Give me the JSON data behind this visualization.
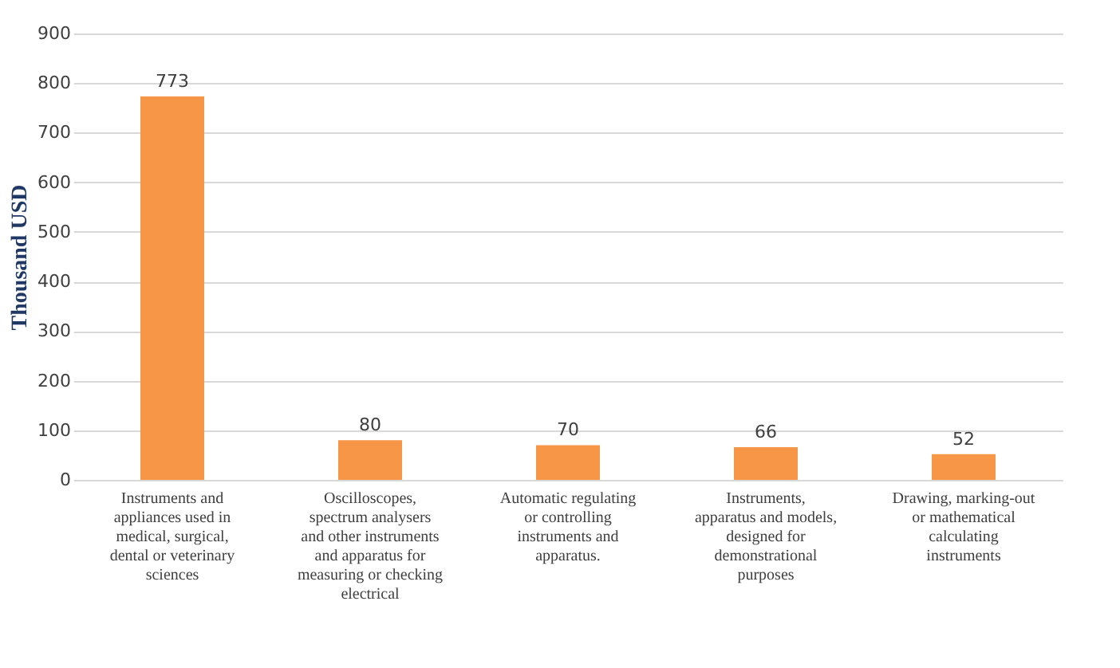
{
  "chart_data": {
    "type": "bar",
    "ylabel": "Thousand USD",
    "categories": [
      "Instruments and appliances used in medical, surgical, dental or veterinary sciences",
      "Oscilloscopes, spectrum analysers and other instruments and apparatus for measuring or checking electrical",
      "Automatic regulating or controlling instruments and apparatus.",
      "Instruments, apparatus and models, designed for demonstrational purposes",
      "Drawing, marking-out or mathematical calculating instruments"
    ],
    "values": [
      773,
      80,
      70,
      66,
      52
    ],
    "color": "#f79646",
    "ylim": [
      0,
      900
    ],
    "yticks": [
      0,
      100,
      200,
      300,
      400,
      500,
      600,
      700,
      800,
      900
    ],
    "grid": "y",
    "data_labels": true
  }
}
